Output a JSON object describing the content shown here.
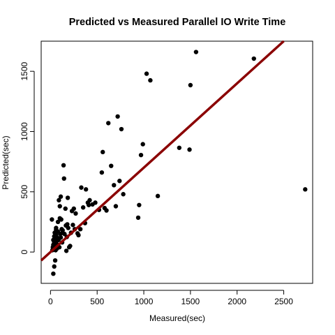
{
  "chart_data": {
    "type": "scatter",
    "title": "Predicted vs Measured Parallel IO Write Time",
    "xlabel": "Measured(sec)",
    "ylabel": "Predicted(sec)",
    "xlim": [
      -100,
      2810
    ],
    "ylim": [
      -260,
      1750
    ],
    "xticks": [
      0,
      500,
      1000,
      1500,
      2000,
      2500
    ],
    "yticks": [
      0,
      500,
      1000,
      1500
    ],
    "grid": false,
    "legend": "none",
    "point_color": "#000000",
    "fit_line": {
      "intercept": 0,
      "slope": 0.7,
      "color": "#8b0000"
    },
    "points": [
      [
        20,
        15
      ],
      [
        25,
        40
      ],
      [
        30,
        60
      ],
      [
        30,
        100
      ],
      [
        35,
        20
      ],
      [
        40,
        80
      ],
      [
        40,
        130
      ],
      [
        45,
        160
      ],
      [
        45,
        30
      ],
      [
        50,
        50
      ],
      [
        50,
        -70
      ],
      [
        55,
        110
      ],
      [
        55,
        15
      ],
      [
        60,
        140
      ],
      [
        60,
        185
      ],
      [
        65,
        90
      ],
      [
        70,
        30
      ],
      [
        70,
        120
      ],
      [
        75,
        60
      ],
      [
        80,
        250
      ],
      [
        80,
        170
      ],
      [
        85,
        100
      ],
      [
        90,
        430
      ],
      [
        95,
        40
      ],
      [
        100,
        280
      ],
      [
        100,
        380
      ],
      [
        105,
        150
      ],
      [
        110,
        460
      ],
      [
        110,
        120
      ],
      [
        115,
        270
      ],
      [
        120,
        190
      ],
      [
        125,
        80
      ],
      [
        130,
        160
      ],
      [
        140,
        720
      ],
      [
        145,
        610
      ],
      [
        150,
        150
      ],
      [
        160,
        360
      ],
      [
        165,
        220
      ],
      [
        170,
        10
      ],
      [
        175,
        125
      ],
      [
        180,
        230
      ],
      [
        185,
        450
      ],
      [
        190,
        200
      ],
      [
        200,
        40
      ],
      [
        210,
        50
      ],
      [
        220,
        160
      ],
      [
        230,
        340
      ],
      [
        240,
        225
      ],
      [
        250,
        360
      ],
      [
        260,
        190
      ],
      [
        270,
        320
      ],
      [
        290,
        155
      ],
      [
        300,
        140
      ],
      [
        320,
        190
      ],
      [
        330,
        535
      ],
      [
        350,
        370
      ],
      [
        370,
        240
      ],
      [
        380,
        520
      ],
      [
        400,
        410
      ],
      [
        410,
        390
      ],
      [
        420,
        430
      ],
      [
        450,
        395
      ],
      [
        480,
        410
      ],
      [
        520,
        350
      ],
      [
        550,
        660
      ],
      [
        560,
        830
      ],
      [
        580,
        365
      ],
      [
        600,
        345
      ],
      [
        620,
        1070
      ],
      [
        650,
        715
      ],
      [
        680,
        555
      ],
      [
        700,
        380
      ],
      [
        720,
        1125
      ],
      [
        740,
        590
      ],
      [
        760,
        1020
      ],
      [
        780,
        480
      ],
      [
        940,
        285
      ],
      [
        950,
        390
      ],
      [
        970,
        805
      ],
      [
        990,
        895
      ],
      [
        1030,
        1480
      ],
      [
        1070,
        1425
      ],
      [
        1150,
        465
      ],
      [
        1380,
        865
      ],
      [
        1490,
        850
      ],
      [
        1500,
        1385
      ],
      [
        1560,
        1660
      ],
      [
        2180,
        1605
      ],
      [
        2730,
        520
      ],
      [
        30,
        -180
      ],
      [
        40,
        -120
      ],
      [
        15,
        270
      ],
      [
        60,
        200
      ],
      [
        130,
        180
      ]
    ]
  }
}
